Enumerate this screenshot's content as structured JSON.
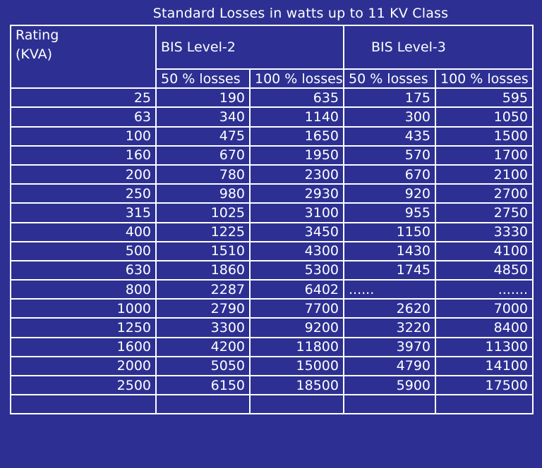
{
  "title": "Standard Losses in watts up to 11 KV Class",
  "header": {
    "rating_line1": "Rating",
    "rating_line2": "(KVA)",
    "level2": "BIS  Level-2",
    "level3": "BIS  Level-3",
    "sub": [
      "50 % losses",
      "100 % losses",
      "50 % losses",
      "100 % losses"
    ]
  },
  "rows": [
    [
      "25",
      "190",
      "635",
      "175",
      "595"
    ],
    [
      "63",
      "340",
      "1140",
      "300",
      "1050"
    ],
    [
      "100",
      "475",
      "1650",
      "435",
      "1500"
    ],
    [
      "160",
      "670",
      "1950",
      "570",
      "1700"
    ],
    [
      "200",
      "780",
      "2300",
      "670",
      "2100"
    ],
    [
      "250",
      "980",
      "2930",
      "920",
      "2700"
    ],
    [
      "315",
      "1025",
      "3100",
      "955",
      "2750"
    ],
    [
      "400",
      "1225",
      "3450",
      "1150",
      "3330"
    ],
    [
      "500",
      "1510",
      "4300",
      "1430",
      "4100"
    ],
    [
      "630",
      "1860",
      "5300",
      "1745",
      "4850"
    ],
    [
      "800",
      "2287",
      "6402",
      "......",
      "......."
    ],
    [
      "1000",
      "2790",
      "7700",
      "2620",
      "7000"
    ],
    [
      "1250",
      "3300",
      "9200",
      "3220",
      "8400"
    ],
    [
      "1600",
      "4200",
      "11800",
      "3970",
      "11300"
    ],
    [
      "2000",
      "5050",
      "15000",
      "4790",
      "14100"
    ],
    [
      "2500",
      "6150",
      "18500",
      "5900",
      "17500"
    ],
    [
      "",
      "",
      "",
      "",
      ""
    ]
  ]
}
